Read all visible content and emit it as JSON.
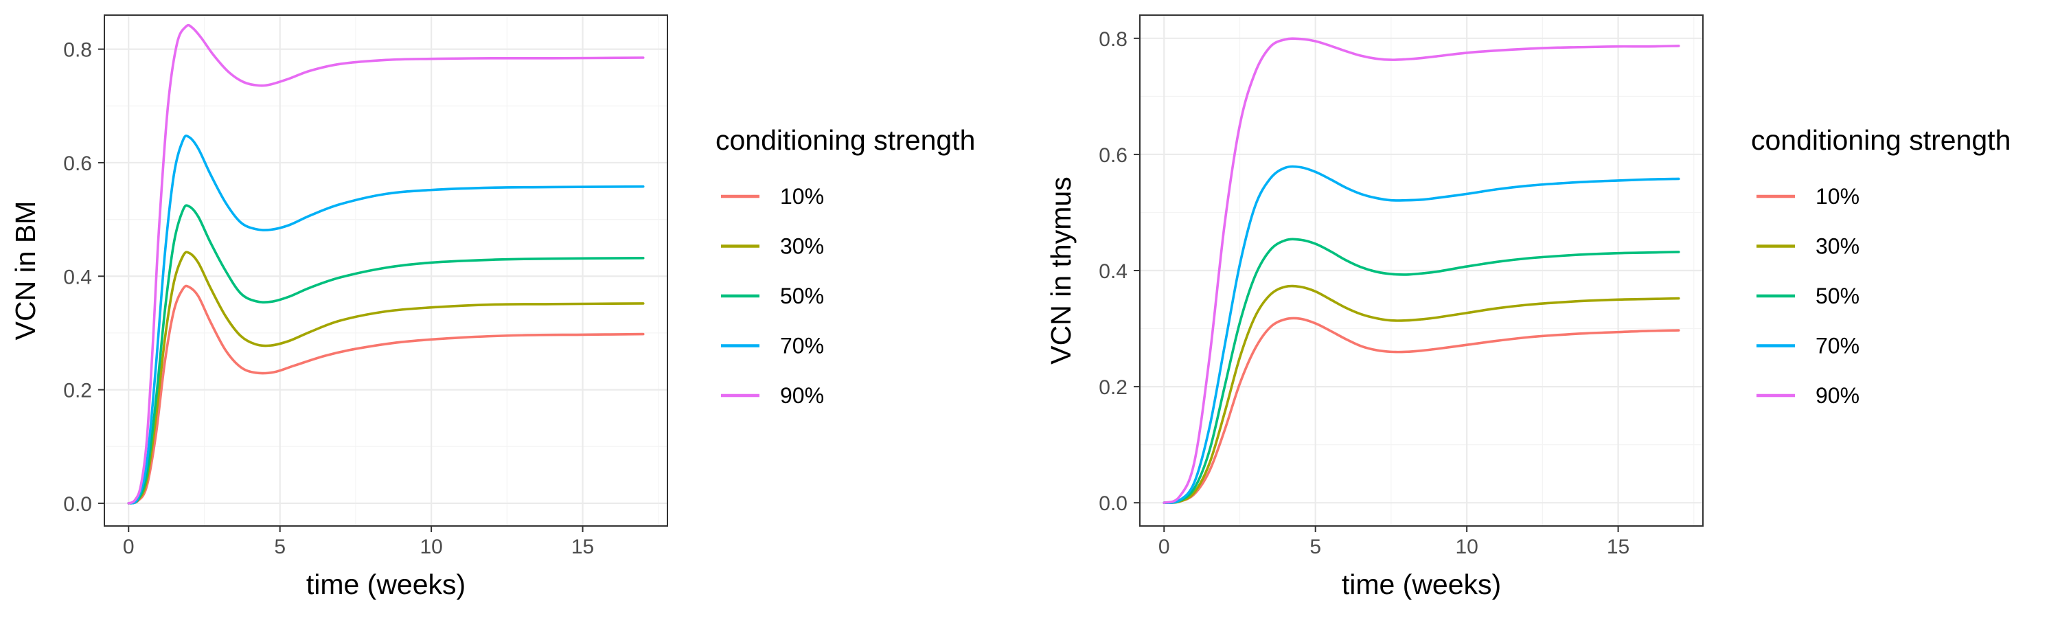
{
  "chart_data": [
    {
      "type": "line",
      "xlabel": "time (weeks)",
      "ylabel": "VCN in BM",
      "xlim": [
        -0.8,
        17.8
      ],
      "ylim": [
        -0.04,
        0.86
      ],
      "xticks": [
        0,
        5,
        10,
        15
      ],
      "yticks": [
        0.0,
        0.2,
        0.4,
        0.6,
        0.8
      ],
      "ytick_labels": [
        "0.0",
        "0.2",
        "0.4",
        "0.6",
        "0.8"
      ],
      "grid": true,
      "legend": {
        "title": "conditioning strength",
        "position": "right"
      },
      "series": [
        {
          "name": "10%",
          "color": "#F8766D",
          "x": [
            0,
            0.3,
            0.6,
            0.9,
            1.2,
            1.5,
            1.8,
            2.0,
            2.3,
            2.7,
            3.2,
            3.7,
            4.2,
            4.8,
            5.5,
            6.5,
            7.5,
            9,
            11,
            13,
            15,
            17
          ],
          "y": [
            0,
            0.004,
            0.03,
            0.12,
            0.25,
            0.34,
            0.378,
            0.381,
            0.365,
            0.32,
            0.27,
            0.24,
            0.23,
            0.231,
            0.243,
            0.26,
            0.272,
            0.284,
            0.292,
            0.296,
            0.297,
            0.298
          ]
        },
        {
          "name": "30%",
          "color": "#A3A500",
          "x": [
            0,
            0.3,
            0.6,
            0.9,
            1.2,
            1.5,
            1.8,
            2.0,
            2.3,
            2.7,
            3.2,
            3.7,
            4.2,
            4.7,
            5.3,
            6.0,
            7.0,
            8.5,
            10,
            12,
            14,
            17
          ],
          "y": [
            0,
            0.005,
            0.04,
            0.15,
            0.29,
            0.39,
            0.436,
            0.441,
            0.424,
            0.38,
            0.33,
            0.295,
            0.28,
            0.278,
            0.286,
            0.302,
            0.322,
            0.338,
            0.345,
            0.35,
            0.351,
            0.352
          ]
        },
        {
          "name": "50%",
          "color": "#00BF7D",
          "x": [
            0,
            0.3,
            0.6,
            0.9,
            1.2,
            1.5,
            1.8,
            2.0,
            2.3,
            2.7,
            3.2,
            3.7,
            4.2,
            4.7,
            5.3,
            6.0,
            7.0,
            8.5,
            10,
            12,
            14,
            17
          ],
          "y": [
            0,
            0.006,
            0.05,
            0.18,
            0.34,
            0.46,
            0.517,
            0.523,
            0.505,
            0.46,
            0.41,
            0.37,
            0.356,
            0.355,
            0.364,
            0.38,
            0.398,
            0.415,
            0.424,
            0.429,
            0.431,
            0.432
          ]
        },
        {
          "name": "70%",
          "color": "#00B0F6",
          "x": [
            0,
            0.3,
            0.6,
            0.9,
            1.2,
            1.5,
            1.8,
            2.0,
            2.3,
            2.7,
            3.2,
            3.7,
            4.2,
            4.7,
            5.3,
            6.0,
            7.0,
            8.5,
            10,
            12,
            14,
            17
          ],
          "y": [
            0,
            0.008,
            0.07,
            0.24,
            0.44,
            0.58,
            0.64,
            0.645,
            0.625,
            0.58,
            0.53,
            0.495,
            0.483,
            0.482,
            0.49,
            0.507,
            0.527,
            0.545,
            0.552,
            0.556,
            0.557,
            0.558
          ]
        },
        {
          "name": "90%",
          "color": "#E76BF3",
          "x": [
            0,
            0.2,
            0.4,
            0.6,
            0.8,
            1.0,
            1.3,
            1.6,
            1.9,
            2.1,
            2.4,
            2.8,
            3.3,
            3.8,
            4.3,
            4.7,
            5.3,
            6.0,
            7.0,
            8.5,
            10,
            12,
            14,
            17
          ],
          "y": [
            0,
            0.005,
            0.03,
            0.11,
            0.28,
            0.48,
            0.7,
            0.81,
            0.84,
            0.838,
            0.82,
            0.79,
            0.76,
            0.742,
            0.736,
            0.738,
            0.748,
            0.762,
            0.774,
            0.781,
            0.783,
            0.784,
            0.784,
            0.785
          ]
        }
      ]
    },
    {
      "type": "line",
      "xlabel": "time (weeks)",
      "ylabel": "VCN in thymus",
      "xlim": [
        -0.8,
        17.8
      ],
      "ylim": [
        -0.04,
        0.84
      ],
      "xticks": [
        0,
        5,
        10,
        15
      ],
      "yticks": [
        0.0,
        0.2,
        0.4,
        0.6,
        0.8
      ],
      "ytick_labels": [
        "0.0",
        "0.2",
        "0.4",
        "0.6",
        "0.8"
      ],
      "grid": true,
      "legend": {
        "title": "conditioning strength",
        "position": "right"
      },
      "series": [
        {
          "name": "10%",
          "color": "#F8766D",
          "x": [
            0,
            0.5,
            1.0,
            1.5,
            2.0,
            2.5,
            3.0,
            3.5,
            4.0,
            4.5,
            5.0,
            5.5,
            6.0,
            6.5,
            7.0,
            7.5,
            8.0,
            8.5,
            9.0,
            10,
            11,
            12,
            13,
            14,
            15,
            16,
            17
          ],
          "y": [
            0,
            0.002,
            0.015,
            0.055,
            0.125,
            0.205,
            0.265,
            0.302,
            0.316,
            0.317,
            0.309,
            0.296,
            0.282,
            0.27,
            0.263,
            0.26,
            0.26,
            0.262,
            0.265,
            0.272,
            0.279,
            0.285,
            0.289,
            0.292,
            0.294,
            0.296,
            0.297
          ]
        },
        {
          "name": "30%",
          "color": "#A3A500",
          "x": [
            0,
            0.5,
            1.0,
            1.5,
            2.0,
            2.5,
            3.0,
            3.5,
            4.0,
            4.5,
            5.0,
            5.5,
            6.0,
            6.5,
            7.0,
            7.5,
            8.0,
            8.5,
            9.0,
            10,
            11,
            12,
            13,
            14,
            15,
            16,
            17
          ],
          "y": [
            0,
            0.002,
            0.018,
            0.068,
            0.155,
            0.25,
            0.32,
            0.358,
            0.372,
            0.372,
            0.364,
            0.35,
            0.336,
            0.325,
            0.318,
            0.314,
            0.314,
            0.316,
            0.319,
            0.327,
            0.335,
            0.341,
            0.345,
            0.348,
            0.35,
            0.351,
            0.352
          ]
        },
        {
          "name": "50%",
          "color": "#00BF7D",
          "x": [
            0,
            0.5,
            1.0,
            1.5,
            2.0,
            2.5,
            3.0,
            3.5,
            4.0,
            4.5,
            5.0,
            5.5,
            6.0,
            6.5,
            7.0,
            7.5,
            8.0,
            8.5,
            9.0,
            10,
            11,
            12,
            13,
            14,
            15,
            16,
            17
          ],
          "y": [
            0,
            0.003,
            0.025,
            0.09,
            0.2,
            0.31,
            0.39,
            0.435,
            0.452,
            0.453,
            0.446,
            0.433,
            0.418,
            0.406,
            0.398,
            0.394,
            0.393,
            0.395,
            0.398,
            0.407,
            0.415,
            0.421,
            0.425,
            0.428,
            0.43,
            0.431,
            0.432
          ]
        },
        {
          "name": "70%",
          "color": "#00B0F6",
          "x": [
            0,
            0.5,
            1.0,
            1.5,
            2.0,
            2.5,
            3.0,
            3.5,
            4.0,
            4.5,
            5.0,
            5.5,
            6.0,
            6.5,
            7.0,
            7.5,
            8.0,
            8.5,
            9.0,
            10,
            11,
            12,
            13,
            14,
            15,
            16,
            17
          ],
          "y": [
            0,
            0.004,
            0.035,
            0.13,
            0.27,
            0.41,
            0.51,
            0.558,
            0.577,
            0.578,
            0.57,
            0.557,
            0.543,
            0.532,
            0.525,
            0.521,
            0.521,
            0.522,
            0.525,
            0.532,
            0.54,
            0.546,
            0.55,
            0.553,
            0.555,
            0.557,
            0.558
          ]
        },
        {
          "name": "90%",
          "color": "#E76BF3",
          "x": [
            0,
            0.5,
            1.0,
            1.5,
            2.0,
            2.5,
            3.0,
            3.5,
            4.0,
            4.5,
            5.0,
            5.5,
            6.0,
            6.5,
            7.0,
            7.5,
            8.0,
            8.5,
            9.0,
            10,
            11,
            12,
            13,
            14,
            15,
            16,
            17
          ],
          "y": [
            0,
            0.01,
            0.07,
            0.25,
            0.48,
            0.65,
            0.74,
            0.785,
            0.798,
            0.799,
            0.795,
            0.787,
            0.778,
            0.77,
            0.765,
            0.763,
            0.764,
            0.766,
            0.769,
            0.775,
            0.779,
            0.782,
            0.784,
            0.785,
            0.786,
            0.786,
            0.787
          ]
        }
      ]
    }
  ]
}
